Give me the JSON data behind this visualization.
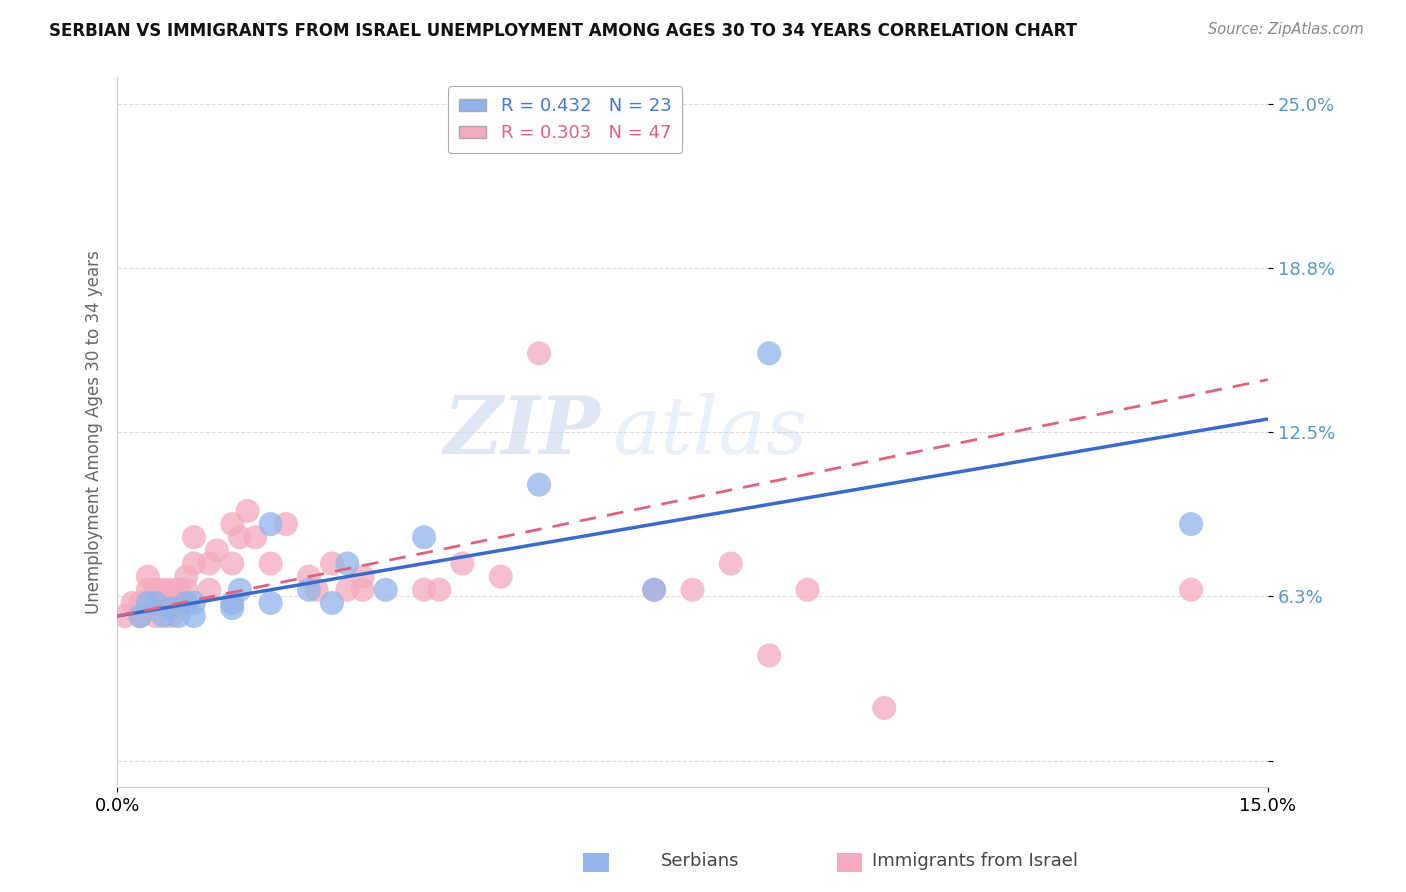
{
  "title": "SERBIAN VS IMMIGRANTS FROM ISRAEL UNEMPLOYMENT AMONG AGES 30 TO 34 YEARS CORRELATION CHART",
  "source": "Source: ZipAtlas.com",
  "ylabel": "Unemployment Among Ages 30 to 34 years",
  "xlim": [
    0.0,
    0.15
  ],
  "ylim": [
    -0.01,
    0.26
  ],
  "yticks": [
    0.0,
    0.0625,
    0.125,
    0.1875,
    0.25
  ],
  "ytick_labels": [
    "",
    "6.3%",
    "12.5%",
    "18.8%",
    "25.0%"
  ],
  "xticks": [
    0.0,
    0.15
  ],
  "xtick_labels": [
    "0.0%",
    "15.0%"
  ],
  "series1_label": "Serbians",
  "series1_R": 0.432,
  "series1_N": 23,
  "series1_color": "#92B4E8",
  "series1_line_color": "#3A6BC9",
  "series2_label": "Immigrants from Israel",
  "series2_R": 0.303,
  "series2_N": 47,
  "series2_color": "#F4AABF",
  "series2_line_color": "#E0637E",
  "watermark_zip": "ZIP",
  "watermark_atlas": "atlas",
  "legend_text_color1": "#4477DD",
  "legend_text_color2": "#E0637E",
  "blue_scatter_x": [
    0.003,
    0.004,
    0.005,
    0.006,
    0.007,
    0.008,
    0.009,
    0.01,
    0.01,
    0.015,
    0.015,
    0.016,
    0.02,
    0.02,
    0.025,
    0.028,
    0.03,
    0.035,
    0.04,
    0.055,
    0.07,
    0.085,
    0.14
  ],
  "blue_scatter_y": [
    0.055,
    0.06,
    0.06,
    0.055,
    0.058,
    0.055,
    0.06,
    0.055,
    0.06,
    0.06,
    0.058,
    0.065,
    0.09,
    0.06,
    0.065,
    0.06,
    0.075,
    0.065,
    0.085,
    0.105,
    0.065,
    0.155,
    0.09
  ],
  "pink_scatter_x": [
    0.001,
    0.002,
    0.003,
    0.003,
    0.004,
    0.004,
    0.005,
    0.005,
    0.005,
    0.006,
    0.006,
    0.007,
    0.007,
    0.008,
    0.008,
    0.009,
    0.009,
    0.01,
    0.01,
    0.012,
    0.012,
    0.013,
    0.015,
    0.015,
    0.016,
    0.017,
    0.018,
    0.02,
    0.022,
    0.025,
    0.026,
    0.028,
    0.03,
    0.032,
    0.032,
    0.04,
    0.042,
    0.045,
    0.05,
    0.055,
    0.07,
    0.075,
    0.08,
    0.085,
    0.09,
    0.1,
    0.14
  ],
  "pink_scatter_y": [
    0.055,
    0.06,
    0.06,
    0.055,
    0.065,
    0.07,
    0.055,
    0.06,
    0.065,
    0.06,
    0.065,
    0.055,
    0.065,
    0.06,
    0.065,
    0.065,
    0.07,
    0.075,
    0.085,
    0.065,
    0.075,
    0.08,
    0.075,
    0.09,
    0.085,
    0.095,
    0.085,
    0.075,
    0.09,
    0.07,
    0.065,
    0.075,
    0.065,
    0.065,
    0.07,
    0.065,
    0.065,
    0.075,
    0.07,
    0.155,
    0.065,
    0.065,
    0.075,
    0.04,
    0.065,
    0.02,
    0.065
  ],
  "grid_color": "#DDDDDD",
  "spine_color": "#CCCCCC"
}
